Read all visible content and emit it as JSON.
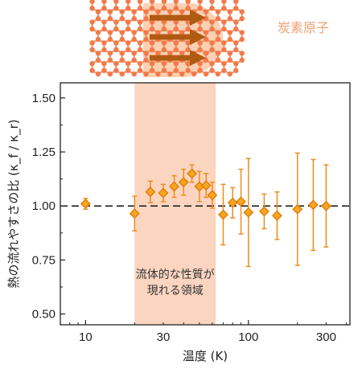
{
  "chart_data": {
    "type": "scatter",
    "xlabel": "温度 (K)",
    "ylabel": "熱の流れやすさの比 (κ_f / κ_r)",
    "x_scale": "log",
    "xlim": [
      7,
      420
    ],
    "ylim": [
      0.45,
      1.57
    ],
    "x_ticks": [
      10,
      30,
      100,
      300
    ],
    "y_ticks": [
      0.5,
      0.75,
      1.0,
      1.25,
      1.5
    ],
    "x_tick_labels": [
      "10",
      "30",
      "100",
      "300"
    ],
    "y_tick_labels": [
      "0.50",
      "0.75",
      "1.00",
      "1.25",
      "1.50"
    ],
    "reference_line": 1.0,
    "highlight_region": {
      "x_range": [
        20,
        63
      ],
      "label_lines": [
        "流体的な性質が",
        "現れる領域"
      ]
    },
    "inset_label": "炭素原子",
    "marker_color": "#f5a623",
    "marker_edge_color": "#e07800",
    "errorbar_color": "#f08c1e",
    "highlight_color": "#fbd5c0",
    "points": [
      {
        "x": 10,
        "y": 1.01,
        "err": 0.025
      },
      {
        "x": 20,
        "y": 0.965,
        "err": 0.08
      },
      {
        "x": 25,
        "y": 1.065,
        "err": 0.05
      },
      {
        "x": 30,
        "y": 1.06,
        "err": 0.04
      },
      {
        "x": 35,
        "y": 1.09,
        "err": 0.05
      },
      {
        "x": 40,
        "y": 1.11,
        "err": 0.06
      },
      {
        "x": 45,
        "y": 1.15,
        "err": 0.04
      },
      {
        "x": 50,
        "y": 1.09,
        "err": 0.07
      },
      {
        "x": 55,
        "y": 1.095,
        "err": 0.055
      },
      {
        "x": 60,
        "y": 1.05,
        "err": 0.06
      },
      {
        "x": 70,
        "y": 0.96,
        "err": 0.14
      },
      {
        "x": 80,
        "y": 1.015,
        "err": 0.07
      },
      {
        "x": 90,
        "y": 1.02,
        "err": 0.15
      },
      {
        "x": 100,
        "y": 0.97,
        "err": 0.25
      },
      {
        "x": 125,
        "y": 0.975,
        "err": 0.08
      },
      {
        "x": 150,
        "y": 0.955,
        "err": 0.11
      },
      {
        "x": 200,
        "y": 0.985,
        "err": 0.26
      },
      {
        "x": 250,
        "y": 1.005,
        "err": 0.21
      },
      {
        "x": 300,
        "y": 1.0,
        "err": 0.19
      }
    ]
  }
}
